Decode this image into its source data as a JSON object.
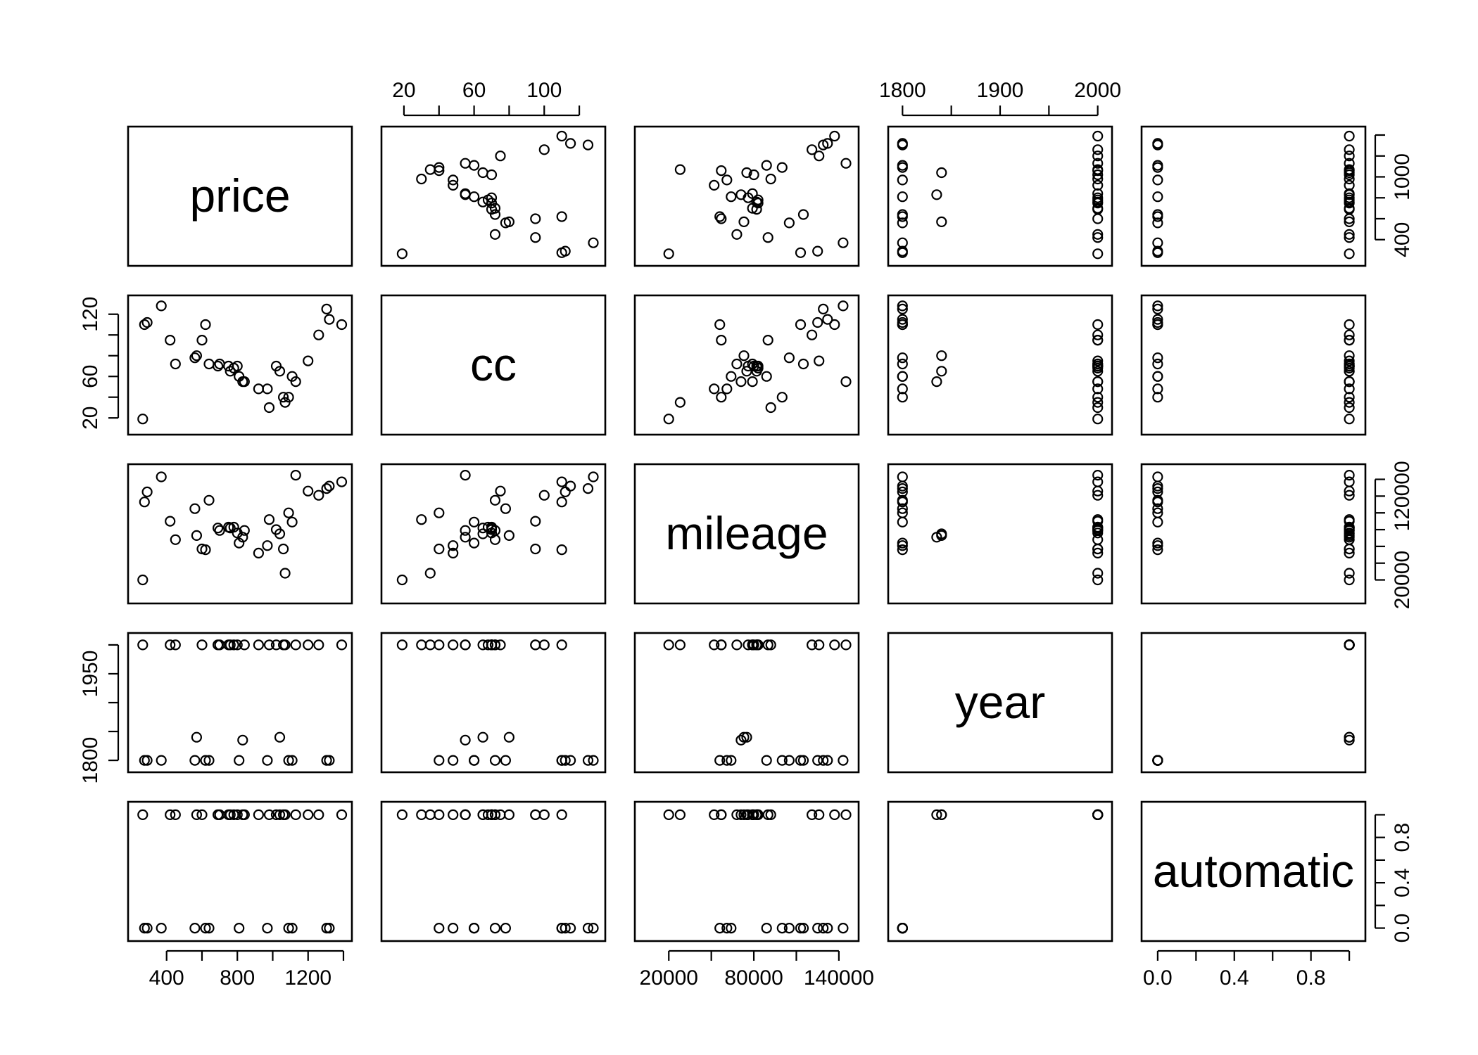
{
  "chart_data": {
    "type": "scatter",
    "title": "",
    "variables": [
      "price",
      "cc",
      "mileage",
      "year",
      "automatic"
    ],
    "axis_ranges": {
      "price": [
        230,
        1400
      ],
      "cc": [
        12,
        130
      ],
      "mileage": [
        2000,
        148000
      ],
      "year": [
        1794,
        2006
      ],
      "automatic": [
        -0.04,
        1.04
      ]
    },
    "ticks": {
      "price": [
        400,
        800,
        1200
      ],
      "price_right": [
        400,
        1000
      ],
      "cc": [
        20,
        60,
        100
      ],
      "cc_left": [
        20,
        60,
        120
      ],
      "mileage": [
        20000,
        80000,
        140000
      ],
      "mileage_right": [
        20000,
        120000
      ],
      "year": [
        1800,
        1900,
        2000
      ],
      "year_left": [
        1800,
        1950
      ],
      "automatic": [
        0.0,
        0.4,
        0.8
      ]
    },
    "minor_ticks": {
      "price_right": [
        600,
        800,
        1200,
        1400
      ],
      "cc": [
        40,
        80,
        120
      ],
      "cc_left": [
        40,
        80,
        100
      ],
      "mileage": [
        50000,
        110000
      ],
      "mileage_right": [
        40000,
        60000,
        80000,
        100000,
        140000
      ],
      "year": [
        1850,
        1950
      ],
      "year_left": [
        1850,
        1900,
        2000
      ],
      "automatic": [
        0.2,
        0.6,
        1.0
      ],
      "price_bottom": [
        600,
        1000,
        1400
      ]
    },
    "tick_labels": {
      "price": [
        "400",
        "800",
        "1200"
      ],
      "price_right": [
        "400",
        "1000"
      ],
      "cc": [
        "20",
        "60",
        "100"
      ],
      "cc_left": [
        "20",
        "60",
        "120"
      ],
      "mileage": [
        "20000",
        "80000",
        "140000"
      ],
      "mileage_right": [
        "20000",
        "120000"
      ],
      "year": [
        "1800",
        "1900",
        "2000"
      ],
      "year_left": [
        "1800",
        "1950"
      ],
      "automatic": [
        "0.0",
        "0.4",
        "0.8"
      ],
      "automatic_right": [
        "0.0",
        "0.4",
        "0.8"
      ]
    },
    "automatic_right_minor": [
      0.2,
      0.6,
      1.0
    ],
    "points": [
      {
        "price": 1390,
        "cc": 110,
        "mileage": 137000,
        "year": 2000,
        "automatic": 1
      },
      {
        "price": 1320,
        "cc": 115,
        "mileage": 132000,
        "year": 1800,
        "automatic": 0
      },
      {
        "price": 1305,
        "cc": 125,
        "mileage": 129000,
        "year": 1800,
        "automatic": 0
      },
      {
        "price": 1260,
        "cc": 100,
        "mileage": 121000,
        "year": 2000,
        "automatic": 1
      },
      {
        "price": 1200,
        "cc": 75,
        "mileage": 126000,
        "year": 2000,
        "automatic": 1
      },
      {
        "price": 1130,
        "cc": 55,
        "mileage": 145000,
        "year": 2000,
        "automatic": 1
      },
      {
        "price": 1110,
        "cc": 60,
        "mileage": 89000,
        "year": 1800,
        "automatic": 0
      },
      {
        "price": 1090,
        "cc": 40,
        "mileage": 100000,
        "year": 1800,
        "automatic": 0
      },
      {
        "price": 1070,
        "cc": 35,
        "mileage": 28000,
        "year": 2000,
        "automatic": 1
      },
      {
        "price": 1060,
        "cc": 40,
        "mileage": 57000,
        "year": 2000,
        "automatic": 1
      },
      {
        "price": 1040,
        "cc": 65,
        "mileage": 75000,
        "year": 1840,
        "automatic": 1
      },
      {
        "price": 1020,
        "cc": 70,
        "mileage": 80000,
        "year": 2000,
        "automatic": 1
      },
      {
        "price": 980,
        "cc": 30,
        "mileage": 92000,
        "year": 2000,
        "automatic": 1
      },
      {
        "price": 970,
        "cc": 48,
        "mileage": 61000,
        "year": 1800,
        "automatic": 0
      },
      {
        "price": 920,
        "cc": 48,
        "mileage": 52000,
        "year": 2000,
        "automatic": 1
      },
      {
        "price": 840,
        "cc": 55,
        "mileage": 79000,
        "year": 2000,
        "automatic": 1
      },
      {
        "price": 830,
        "cc": 55,
        "mileage": 71000,
        "year": 1835,
        "automatic": 1
      },
      {
        "price": 810,
        "cc": 60,
        "mileage": 64000,
        "year": 1800,
        "automatic": 0
      },
      {
        "price": 800,
        "cc": 70,
        "mileage": 76000,
        "year": 2000,
        "automatic": 1
      },
      {
        "price": 780,
        "cc": 68,
        "mileage": 83000,
        "year": 2000,
        "automatic": 1
      },
      {
        "price": 760,
        "cc": 65,
        "mileage": 82000,
        "year": 2000,
        "automatic": 1
      },
      {
        "price": 750,
        "cc": 70,
        "mileage": 83000,
        "year": 2000,
        "automatic": 1
      },
      {
        "price": 700,
        "cc": 72,
        "mileage": 79000,
        "year": 2000,
        "automatic": 1
      },
      {
        "price": 690,
        "cc": 70,
        "mileage": 82000,
        "year": 2000,
        "automatic": 1
      },
      {
        "price": 640,
        "cc": 72,
        "mileage": 115000,
        "year": 1800,
        "automatic": 0
      },
      {
        "price": 620,
        "cc": 110,
        "mileage": 56000,
        "year": 1800,
        "automatic": 0
      },
      {
        "price": 600,
        "cc": 95,
        "mileage": 57000,
        "year": 2000,
        "automatic": 1
      },
      {
        "price": 570,
        "cc": 80,
        "mileage": 73000,
        "year": 1840,
        "automatic": 1
      },
      {
        "price": 560,
        "cc": 78,
        "mileage": 105000,
        "year": 1800,
        "automatic": 0
      },
      {
        "price": 450,
        "cc": 72,
        "mileage": 68000,
        "year": 2000,
        "automatic": 1
      },
      {
        "price": 420,
        "cc": 95,
        "mileage": 90000,
        "year": 2000,
        "automatic": 1
      },
      {
        "price": 370,
        "cc": 128,
        "mileage": 143000,
        "year": 1800,
        "automatic": 0
      },
      {
        "price": 290,
        "cc": 112,
        "mileage": 125000,
        "year": 1800,
        "automatic": 0
      },
      {
        "price": 275,
        "cc": 110,
        "mileage": 113000,
        "year": 1800,
        "automatic": 0
      },
      {
        "price": 265,
        "cc": 19,
        "mileage": 20000,
        "year": 2000,
        "automatic": 1
      }
    ]
  }
}
